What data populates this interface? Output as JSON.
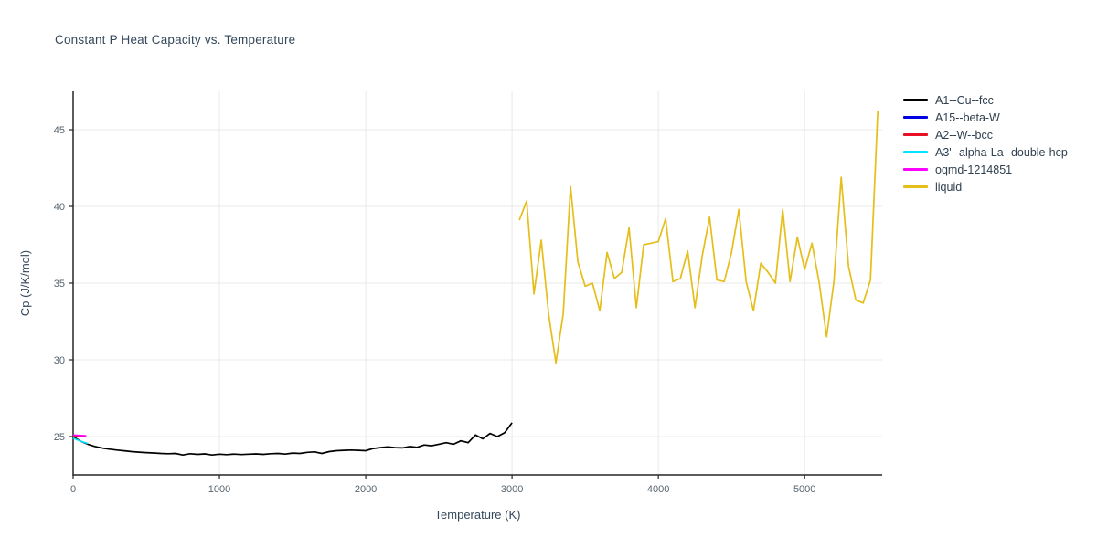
{
  "page": {
    "background": "#ffffff"
  },
  "chart_data": {
    "type": "line",
    "title": "Constant P Heat Capacity vs. Temperature",
    "xlabel": "Temperature (K)",
    "ylabel": "Cp (J/K/mol)",
    "xlim": [
      0,
      5530
    ],
    "ylim": [
      22.5,
      47.5
    ],
    "x_ticks": [
      0,
      1000,
      2000,
      3000,
      4000,
      5000
    ],
    "y_ticks": [
      25,
      30,
      35,
      40,
      45
    ],
    "grid": true,
    "legend_position": "top-right",
    "series": [
      {
        "name": "A1--Cu--fcc",
        "color": "#000000",
        "x": [
          0,
          50,
          100,
          150,
          200,
          250,
          300,
          350,
          400,
          450,
          500,
          550,
          600,
          650,
          700,
          750,
          800,
          850,
          900,
          950,
          1000,
          1050,
          1100,
          1150,
          1200,
          1250,
          1300,
          1350,
          1400,
          1450,
          1500,
          1550,
          1600,
          1650,
          1700,
          1750,
          1800,
          1850,
          1900,
          1950,
          2000,
          2050,
          2100,
          2150,
          2200,
          2250,
          2300,
          2350,
          2400,
          2450,
          2500,
          2550,
          2600,
          2650,
          2700,
          2750,
          2800,
          2850,
          2900,
          2950,
          3000
        ],
        "y": [
          25.0,
          24.7,
          24.5,
          24.35,
          24.25,
          24.18,
          24.12,
          24.07,
          24.02,
          23.98,
          23.95,
          23.93,
          23.9,
          23.88,
          23.9,
          23.8,
          23.88,
          23.84,
          23.87,
          23.8,
          23.85,
          23.82,
          23.86,
          23.83,
          23.85,
          23.87,
          23.84,
          23.88,
          23.9,
          23.86,
          23.92,
          23.9,
          23.97,
          24.0,
          23.9,
          24.02,
          24.08,
          24.1,
          24.12,
          24.1,
          24.08,
          24.22,
          24.28,
          24.32,
          24.28,
          24.26,
          24.35,
          24.3,
          24.45,
          24.4,
          24.5,
          24.6,
          24.5,
          24.72,
          24.6,
          25.1,
          24.85,
          25.2,
          25.0,
          25.25,
          25.9
        ]
      },
      {
        "name": "A15--beta-W",
        "color": "#0000e0",
        "x": [
          0,
          60
        ],
        "y": [
          25.0,
          25.0
        ]
      },
      {
        "name": "A2--W--bcc",
        "color": "#e81123",
        "x": [
          0,
          90
        ],
        "y": [
          25.05,
          25.0
        ]
      },
      {
        "name": "A3'--alpha-La--double-hcp",
        "color": "#00e5ff",
        "x": [
          0,
          50,
          100
        ],
        "y": [
          24.9,
          24.7,
          24.55
        ]
      },
      {
        "name": "oqmd-1214851",
        "color": "#ff00ff",
        "x": [
          0,
          90
        ],
        "y": [
          25.1,
          25.05
        ]
      },
      {
        "name": "liquid",
        "color": "#e6be19",
        "x": [
          3050,
          3100,
          3150,
          3200,
          3250,
          3300,
          3350,
          3400,
          3450,
          3500,
          3550,
          3600,
          3650,
          3700,
          3750,
          3800,
          3850,
          3900,
          3950,
          4000,
          4050,
          4100,
          4150,
          4200,
          4250,
          4300,
          4350,
          4400,
          4450,
          4500,
          4550,
          4600,
          4650,
          4700,
          4750,
          4800,
          4850,
          4900,
          4950,
          5000,
          5050,
          5100,
          5150,
          5200,
          5250,
          5300,
          5350,
          5400,
          5450,
          5500
        ],
        "y": [
          39.1,
          40.35,
          34.3,
          37.8,
          33.0,
          29.8,
          33.0,
          41.3,
          36.4,
          34.8,
          35.0,
          33.2,
          37.0,
          35.3,
          35.7,
          38.6,
          33.4,
          37.5,
          37.6,
          37.7,
          39.2,
          35.1,
          35.3,
          37.1,
          33.4,
          36.8,
          39.3,
          35.2,
          35.1,
          37.0,
          39.8,
          35.1,
          33.2,
          36.3,
          35.7,
          35.0,
          39.8,
          35.1,
          38.0,
          35.9,
          37.6,
          35.0,
          31.5,
          35.1,
          41.9,
          36.1,
          33.9,
          33.7,
          35.2,
          46.2
        ]
      }
    ]
  }
}
